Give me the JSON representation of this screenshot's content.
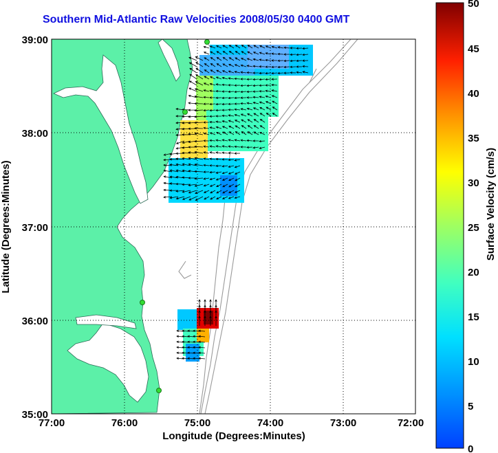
{
  "title": "Southern Mid-Atlantic Raw Velocities 2008/05/30 0400 GMT",
  "xlabel": "Longitude (Degrees:Minutes)",
  "ylabel": "Latitude (Degrees:Minutes)",
  "x_ticks": [
    "77:00",
    "76:00",
    "75:00",
    "74:00",
    "73:00",
    "72:00"
  ],
  "y_ticks": [
    "39:00",
    "38:00",
    "37:00",
    "36:00",
    "35:00"
  ],
  "colorbar": {
    "label": "Surface Velocity (cm/s)",
    "ticks": [
      "50",
      "45",
      "40",
      "35",
      "30",
      "25",
      "20",
      "15",
      "10",
      "5",
      "0"
    ],
    "range": [
      0,
      50
    ],
    "colormap": "jet"
  },
  "colors": {
    "land": "#5cf0a8",
    "title": "#1010e0",
    "bathymetry": "#9a9a9a",
    "station": "#33dd33"
  }
}
